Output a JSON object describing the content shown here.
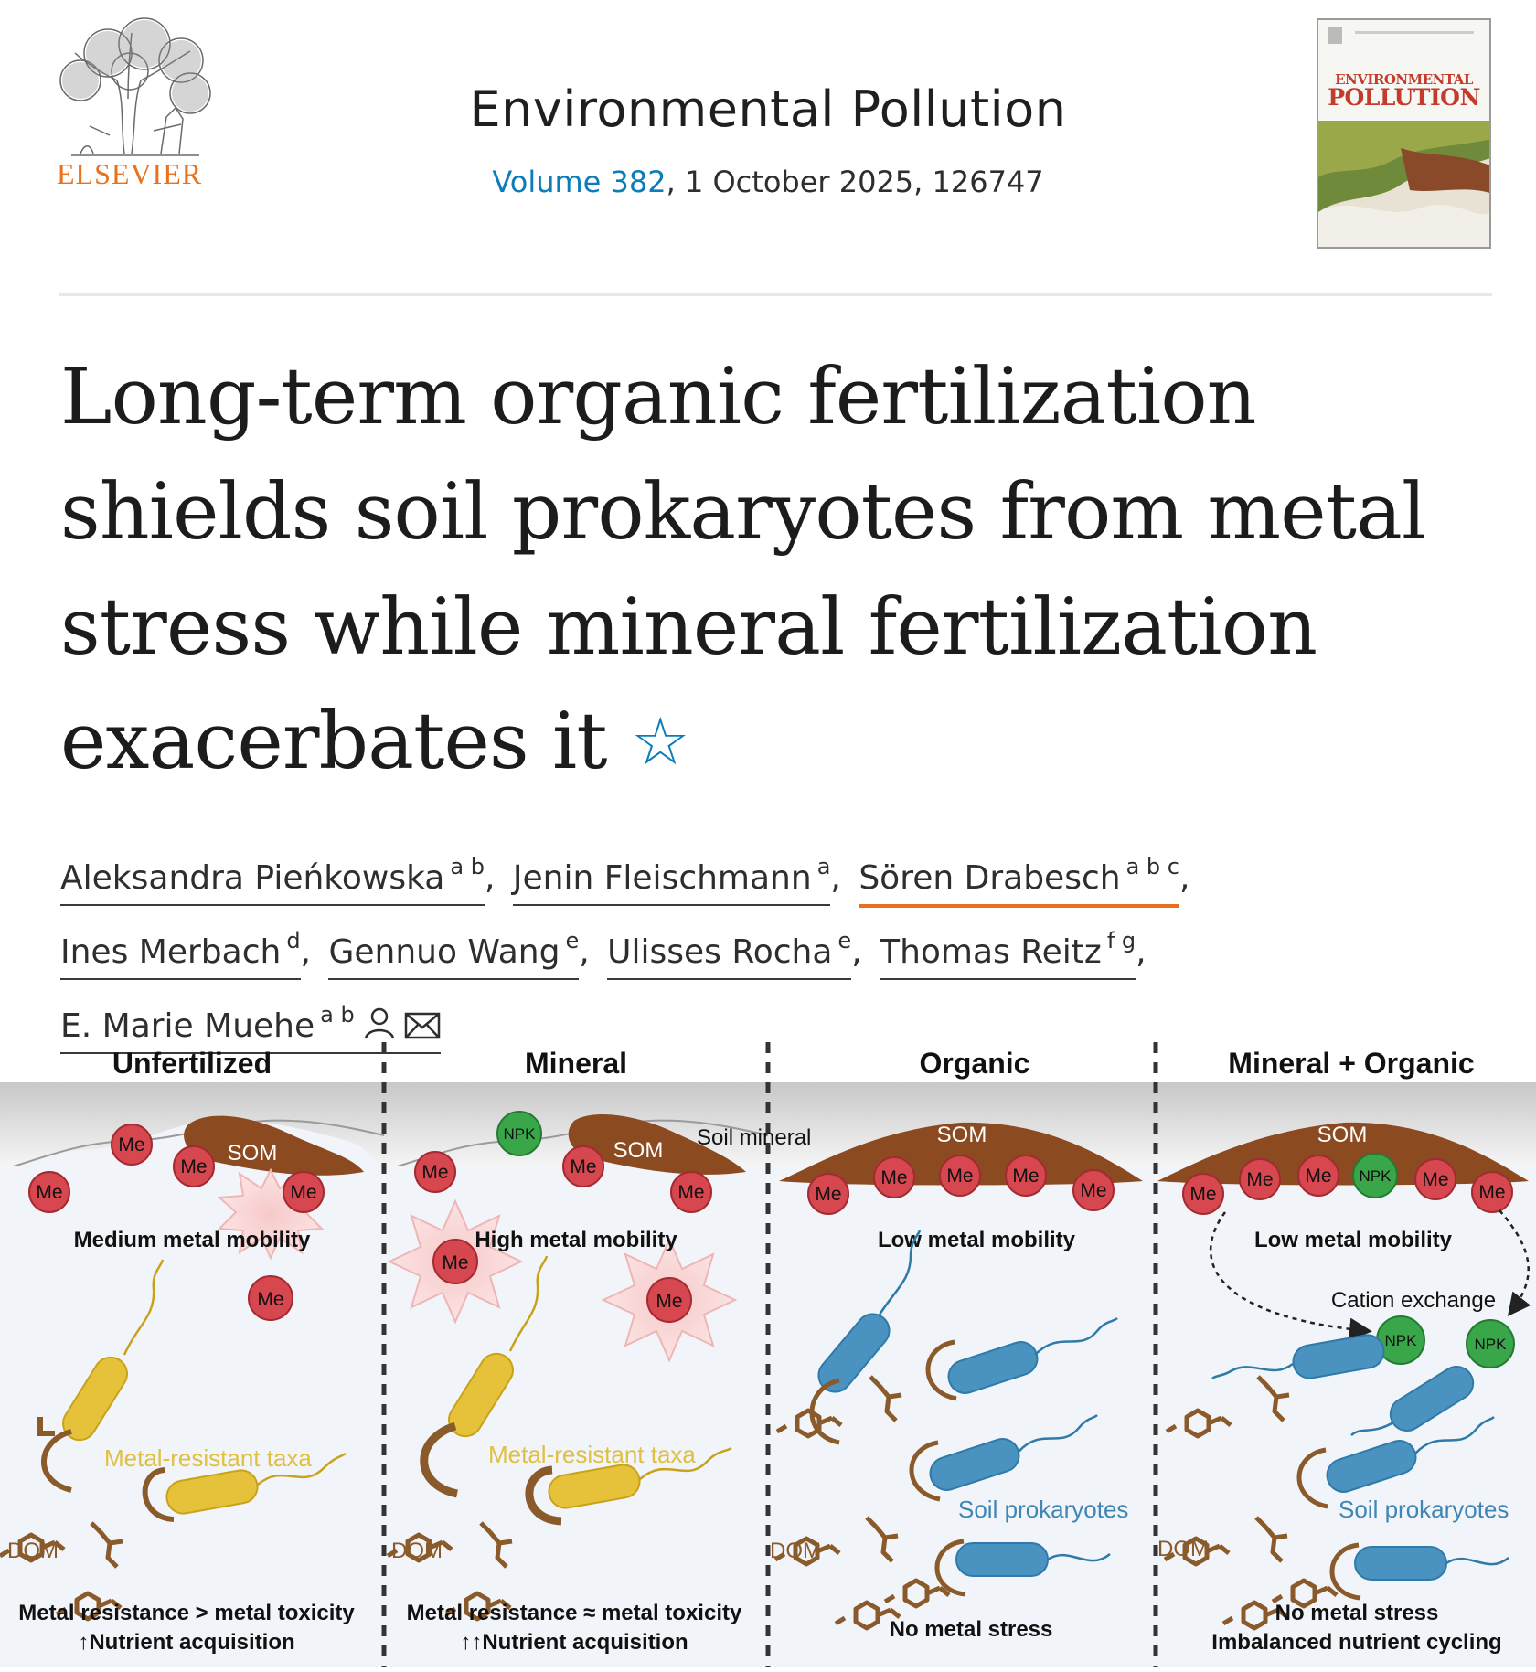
{
  "journal": {
    "publisher": "ELSEVIER",
    "name": "Environmental Pollution",
    "volume_link": "Volume 382",
    "issue_rest": ", 1 October 2025, 126747",
    "cover_title_line1": "ENVIRONMENTAL",
    "cover_title_line2": "POLLUTION"
  },
  "article": {
    "title": "Long-term organic fertilization shields soil prokaryotes from metal stress while mineral fertilization exacerbates it",
    "title_icon": "star-icon"
  },
  "authors": [
    {
      "name": "Aleksandra Pieńkowska",
      "aff": "a b",
      "sep": ","
    },
    {
      "name": "Jenin Fleischmann",
      "aff": "a",
      "sep": ","
    },
    {
      "name": "Sören Drabesch",
      "aff": "a b c",
      "sep": ","
    },
    {
      "name": "Ines Merbach",
      "aff": "d",
      "sep": ","
    },
    {
      "name": "Gennuo Wang",
      "aff": "e",
      "sep": ","
    },
    {
      "name": "Ulisses Rocha",
      "aff": "e",
      "sep": ","
    },
    {
      "name": "Thomas Reitz",
      "aff": "f g",
      "sep": ","
    },
    {
      "name": "E. Marie Muehe",
      "aff": "a b",
      "sep": ""
    }
  ],
  "author_icons": [
    "person-icon",
    "envelope-icon"
  ],
  "abstract_figure": {
    "panels": [
      {
        "heading": "Unfertilized",
        "mobility": "Medium metal mobility",
        "taxa": "Metal-resistant taxa",
        "dom": "DOM",
        "footer1": "Metal resistance > metal toxicity",
        "footer2": "↑Nutrient acquisition"
      },
      {
        "heading": "Mineral",
        "mobility": "High metal mobility",
        "taxa": "Metal-resistant taxa",
        "dom": "DOM",
        "footer1": "Metal resistance ≈ metal toxicity",
        "footer2": "↑↑Nutrient acquisition",
        "extra_label": "Soil mineral"
      },
      {
        "heading": "Organic",
        "mobility": "Low metal mobility",
        "taxa": "Soil prokaryotes",
        "dom": "DOM",
        "footer1": "No metal stress",
        "footer2": ""
      },
      {
        "heading": "Mineral + Organic",
        "mobility": "Low metal mobility",
        "taxa": "Soil prokaryotes",
        "dom": "DOM",
        "footer1": "No metal stress",
        "footer2": "Imbalanced nutrient cycling",
        "extra_label": "Cation exchange"
      }
    ],
    "labels": {
      "metal": "Me",
      "npk": "NPK",
      "som": "SOM"
    },
    "colors": {
      "metal": "#d6474f",
      "npk": "#3aa64a",
      "som": "#8b4a20",
      "resistant": "#e6c23a",
      "prokaryote": "#4a93c0",
      "dom": "#8b5a2b",
      "taxa_text_resistant": "#e0c040",
      "taxa_text_prok": "#3f86b4"
    }
  }
}
